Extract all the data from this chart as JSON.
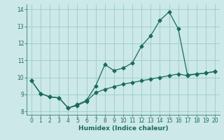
{
  "xlabel": "Humidex (Indice chaleur)",
  "bg_color": "#cce8e8",
  "grid_color": "#99cccc",
  "line_color": "#1a6b5a",
  "xlim": [
    -0.5,
    20.5
  ],
  "ylim": [
    7.8,
    14.3
  ],
  "xticks": [
    0,
    1,
    2,
    3,
    4,
    5,
    6,
    7,
    8,
    9,
    10,
    11,
    12,
    13,
    14,
    15,
    16,
    17,
    18,
    19,
    20
  ],
  "yticks": [
    8,
    9,
    10,
    11,
    12,
    13,
    14
  ],
  "line1_x": [
    0,
    1,
    2,
    3,
    4,
    5,
    6,
    7,
    8,
    9,
    10,
    11,
    12,
    13,
    14,
    15,
    16,
    17,
    18,
    19,
    20
  ],
  "line1_y": [
    9.8,
    9.05,
    8.85,
    8.8,
    8.2,
    8.4,
    8.65,
    9.5,
    10.75,
    10.4,
    10.55,
    10.85,
    11.85,
    12.45,
    13.35,
    13.85,
    12.85,
    10.15,
    10.2,
    10.25,
    10.35
  ],
  "line2_x": [
    0,
    1,
    2,
    3,
    4,
    5,
    6,
    7,
    8,
    9,
    10,
    11,
    12,
    13,
    14,
    15,
    16,
    17,
    18,
    19,
    20
  ],
  "line2_y": [
    9.8,
    9.05,
    8.85,
    8.8,
    8.2,
    8.35,
    8.6,
    9.1,
    9.3,
    9.45,
    9.6,
    9.7,
    9.8,
    9.9,
    10.0,
    10.1,
    10.2,
    10.1,
    10.2,
    10.25,
    10.35
  ]
}
